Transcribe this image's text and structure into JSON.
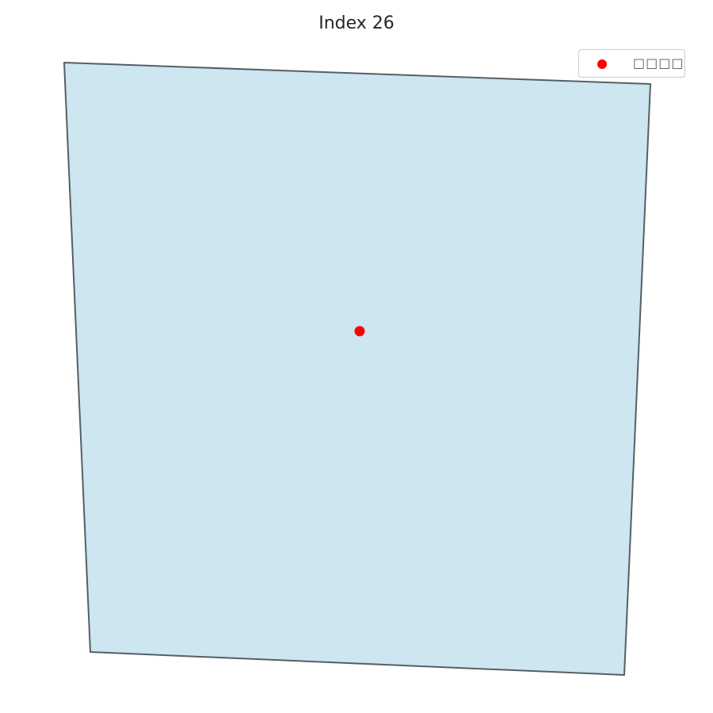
{
  "title": "Index 26",
  "legend": {
    "label": "□□□□",
    "marker_color": "#ff0000"
  },
  "map": {
    "polygon_fill": "#cde6f0",
    "polygon_edge": "#555f66",
    "point_color": "#ff0000"
  }
}
